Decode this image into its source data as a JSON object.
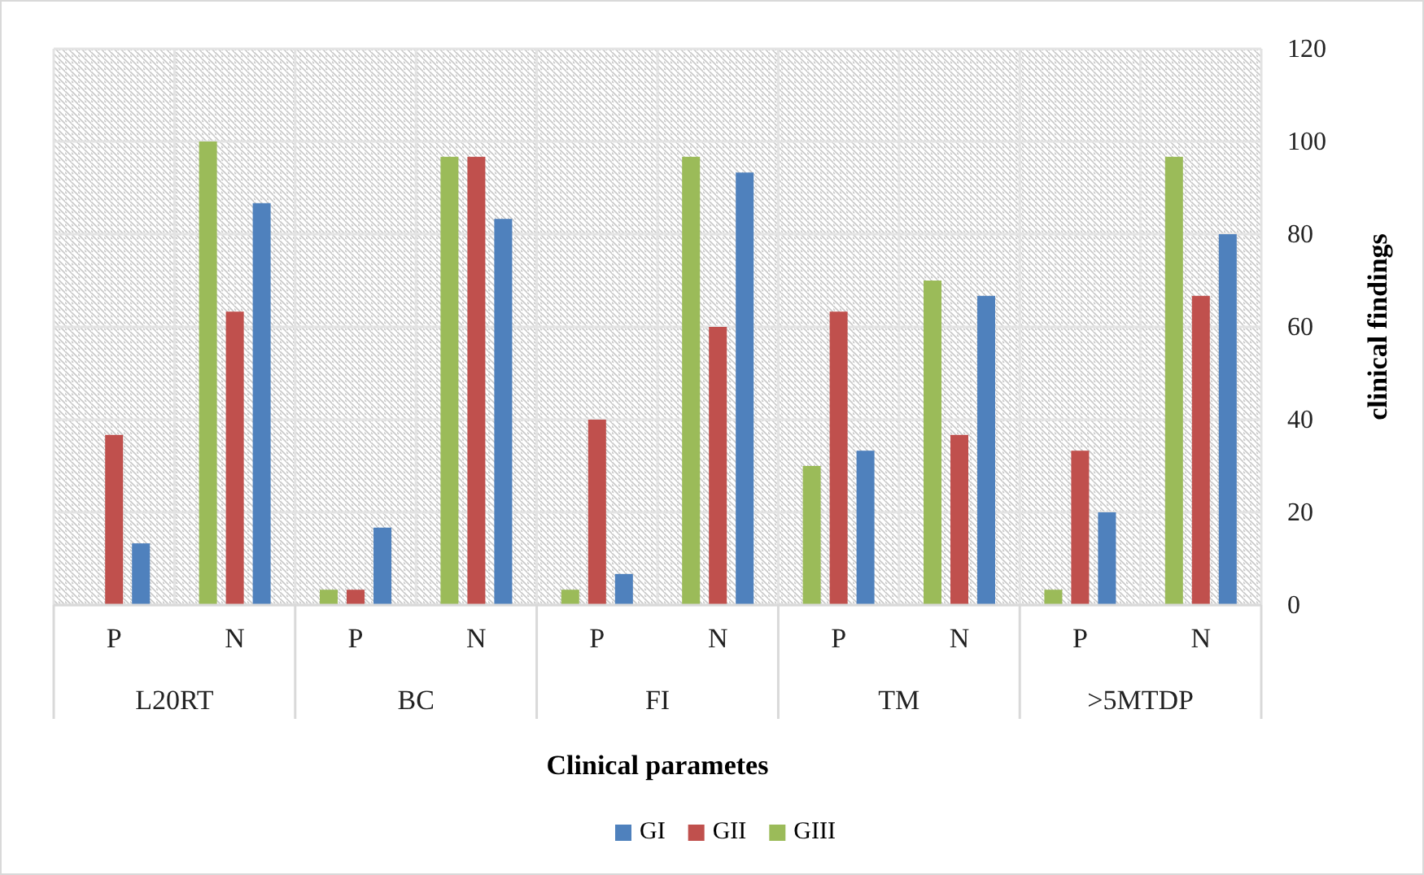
{
  "chart_data": {
    "type": "bar",
    "xlabel": "Clinical parametes",
    "ylabel": "clinical findings",
    "categories": [
      "P",
      "N",
      "P",
      "N",
      "P",
      "N",
      "P",
      "N",
      "P",
      "N"
    ],
    "annotations": [
      "L20RT",
      "BC",
      "FI",
      "TM",
      ">5MTDP"
    ],
    "series": [
      {
        "name": "GI",
        "color": "#4f81bd",
        "values": [
          13.3,
          86.7,
          16.7,
          83.3,
          6.7,
          93.3,
          33.3,
          66.7,
          20,
          80
        ]
      },
      {
        "name": "GII",
        "color": "#c0504d",
        "values": [
          36.7,
          63.3,
          3.3,
          96.7,
          40,
          60,
          63.3,
          36.7,
          33.3,
          66.7
        ]
      },
      {
        "name": "GIII",
        "color": "#9bbb59",
        "values": [
          0,
          100,
          3.3,
          96.7,
          3.3,
          96.7,
          30,
          70,
          3.3,
          96.7
        ]
      }
    ],
    "ylim": [
      0,
      120
    ],
    "yticks": [
      0,
      20,
      40,
      60,
      80,
      100,
      120
    ],
    "grid": true,
    "legend": "bottom"
  }
}
